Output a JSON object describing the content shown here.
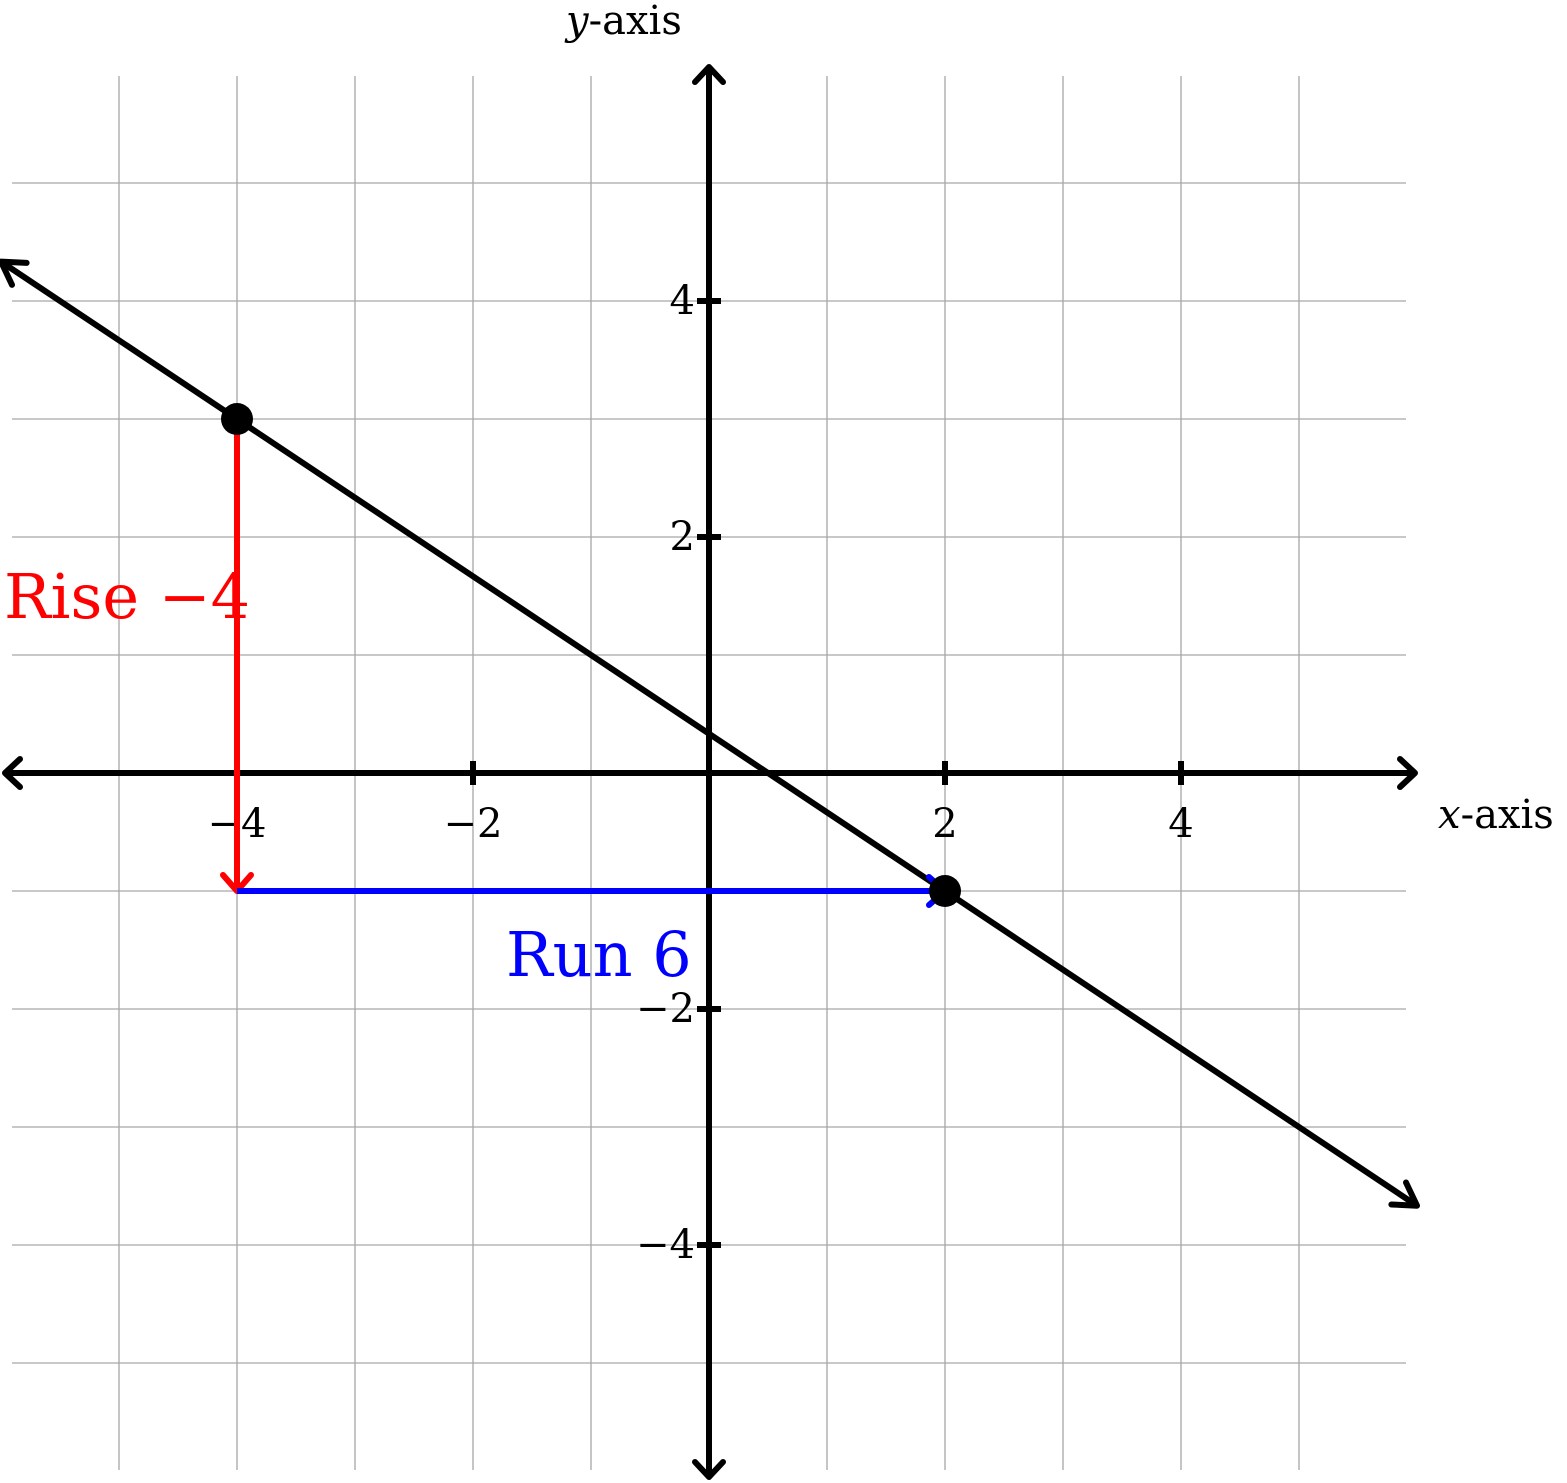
{
  "chart_data": {
    "type": "line",
    "title": "",
    "xlabel": {
      "var": "x",
      "suffix": "-axis"
    },
    "ylabel": {
      "var": "y",
      "suffix": "-axis"
    },
    "xlim": [
      -6,
      6
    ],
    "ylim": [
      -6,
      6
    ],
    "grid": true,
    "x_ticks": [
      {
        "value": -4,
        "label": "−4"
      },
      {
        "value": -2,
        "label": "−2"
      },
      {
        "value": 2,
        "label": "2"
      },
      {
        "value": 4,
        "label": "4"
      }
    ],
    "y_ticks": [
      {
        "value": 4,
        "label": "4"
      },
      {
        "value": 2,
        "label": "2"
      },
      {
        "value": -2,
        "label": "−2"
      },
      {
        "value": -4,
        "label": "−4"
      }
    ],
    "line": {
      "slope": -0.6667,
      "intercept": 0.3333,
      "x_range": [
        -6,
        6
      ]
    },
    "points": [
      {
        "x": -4,
        "y": 3
      },
      {
        "x": 2,
        "y": -1
      }
    ],
    "rise": {
      "from": [
        -4,
        3
      ],
      "to": [
        -4,
        -1
      ],
      "label": "Rise −4",
      "color": "#ff0000"
    },
    "run": {
      "from": [
        -4,
        -1
      ],
      "to": [
        2,
        -1
      ],
      "label": "Run 6",
      "color": "#0000ff"
    }
  }
}
